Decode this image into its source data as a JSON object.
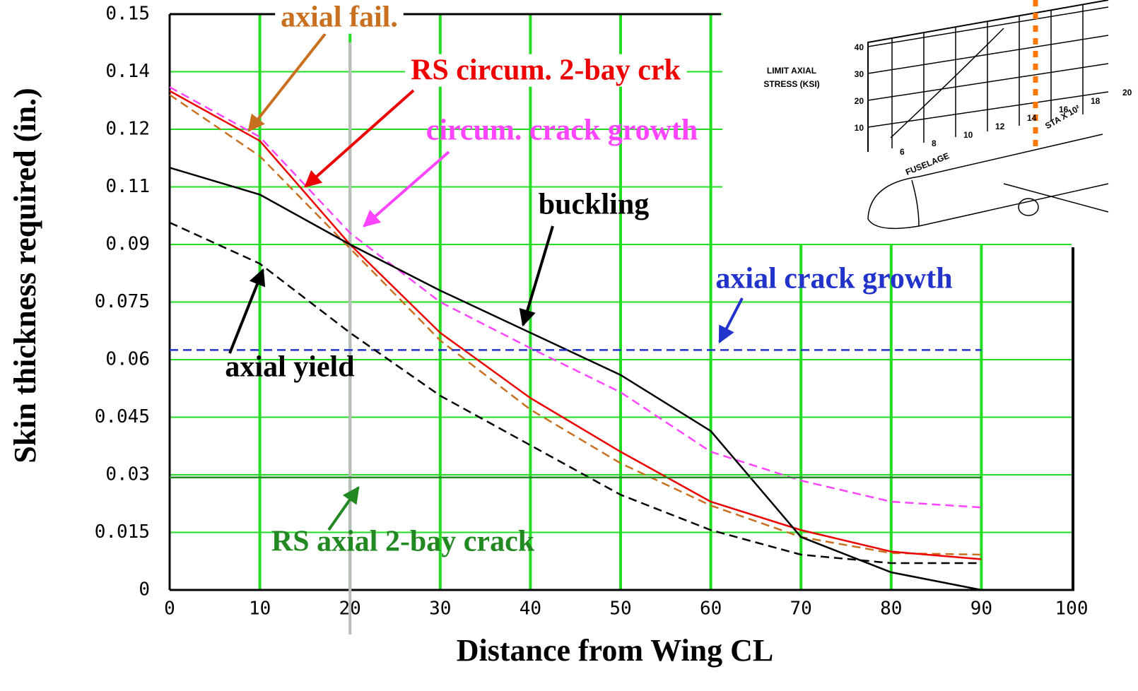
{
  "chart_data": {
    "type": "line",
    "xlabel": "Distance from Wing CL",
    "ylabel": "Skin thickness required (in.)",
    "x": [
      0,
      10,
      20,
      30,
      40,
      50,
      60,
      70,
      80,
      90
    ],
    "xlim": [
      0,
      100
    ],
    "xticks": [
      0,
      10,
      20,
      30,
      40,
      50,
      60,
      70,
      80,
      90,
      100
    ],
    "ylim": [
      0,
      0.15
    ],
    "yticks": [
      0,
      0.015,
      0.03,
      0.045,
      0.06,
      0.075,
      0.09,
      {
        "value": 0.105,
        "label": "0.11"
      },
      0.12,
      {
        "value": 0.135,
        "label": "0.14"
      },
      0.15
    ],
    "grid": true,
    "grid_color": "#22dd22",
    "series": [
      {
        "name": "axial fail.",
        "color": "#c87020",
        "style": "dashed",
        "values": [
          0.129,
          0.113,
          0.089,
          0.065,
          0.047,
          0.033,
          0.022,
          0.0138,
          0.0096,
          0.0092
        ]
      },
      {
        "name": "RS circum. 2-bay crk",
        "color": "#ee0000",
        "style": "solid",
        "values": [
          0.13,
          0.117,
          0.09,
          0.067,
          0.05,
          0.036,
          0.023,
          0.0156,
          0.01,
          0.008
        ]
      },
      {
        "name": "circum. crack growth",
        "color": "#ff44ff",
        "style": "dashed",
        "values": [
          0.131,
          0.118,
          0.093,
          0.075,
          0.063,
          0.0515,
          0.036,
          0.0285,
          0.023,
          0.0215
        ]
      },
      {
        "name": "buckling",
        "color": "#000000",
        "style": "solid",
        "values": [
          0.11,
          0.103,
          0.09,
          0.078,
          0.067,
          0.056,
          0.0414,
          0.0138,
          0.0046,
          0
        ]
      },
      {
        "name": "axial crack growth",
        "color": "#2233cc",
        "style": "dashed",
        "values": [
          0.0625,
          0.0625,
          0.0625,
          0.0625,
          0.0625,
          0.0625,
          0.0625,
          0.0625,
          0.0625,
          0.0625
        ]
      },
      {
        "name": "axial yield",
        "color": "#000000",
        "style": "dashed",
        "values": [
          0.0957,
          0.085,
          0.067,
          0.0506,
          0.0377,
          0.0248,
          0.0156,
          0.0092,
          0.007,
          0.007
        ]
      },
      {
        "name": "RS axial 2-bay crack",
        "color": "#228822",
        "style": "solid",
        "values": [
          0.0293,
          0.0293,
          0.0293,
          0.0293,
          0.0293,
          0.0293,
          0.0293,
          0.0293,
          0.0293,
          0.0293
        ]
      }
    ]
  },
  "inset": {
    "ylabel_1": "LIMIT AXIAL",
    "ylabel_2": "STRESS (KSI)",
    "yticks": [
      "10",
      "20",
      "30",
      "40"
    ],
    "xticks": [
      "6",
      "8",
      "10",
      "12",
      "14",
      "16",
      "18",
      "20"
    ],
    "xlabel": "FUSELAGE",
    "xlabel_2": "STA X 10²"
  }
}
